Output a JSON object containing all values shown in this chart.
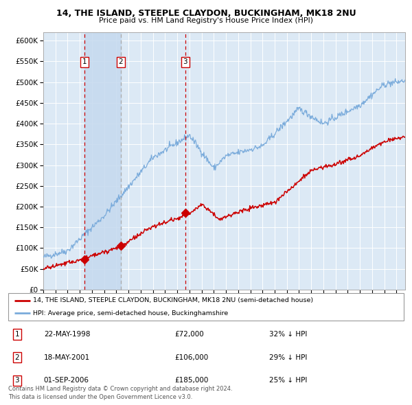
{
  "title": "14, THE ISLAND, STEEPLE CLAYDON, BUCKINGHAM, MK18 2NU",
  "subtitle": "Price paid vs. HM Land Registry's House Price Index (HPI)",
  "background_color": "#ffffff",
  "plot_bg_color": "#dce9f5",
  "grid_color": "#ffffff",
  "purchases": [
    {
      "label": "1",
      "date_x": 1998.38,
      "price": 72000,
      "date_str": "22-MAY-1998",
      "pct": "32% ↓ HPI"
    },
    {
      "label": "2",
      "date_x": 2001.37,
      "price": 106000,
      "date_str": "18-MAY-2001",
      "pct": "29% ↓ HPI"
    },
    {
      "label": "3",
      "date_x": 2006.66,
      "price": 185000,
      "date_str": "01-SEP-2006",
      "pct": "25% ↓ HPI"
    }
  ],
  "legend_line1": "14, THE ISLAND, STEEPLE CLAYDON, BUCKINGHAM, MK18 2NU (semi-detached house)",
  "legend_line2": "HPI: Average price, semi-detached house, Buckinghamshire",
  "footer": "Contains HM Land Registry data © Crown copyright and database right 2024.\nThis data is licensed under the Open Government Licence v3.0.",
  "price_line_color": "#cc0000",
  "hpi_line_color": "#7aabdb",
  "shade_color": "#c5d9ee",
  "ylim": [
    0,
    620000
  ],
  "xlim_left": 1995.0,
  "xlim_right": 2024.7
}
